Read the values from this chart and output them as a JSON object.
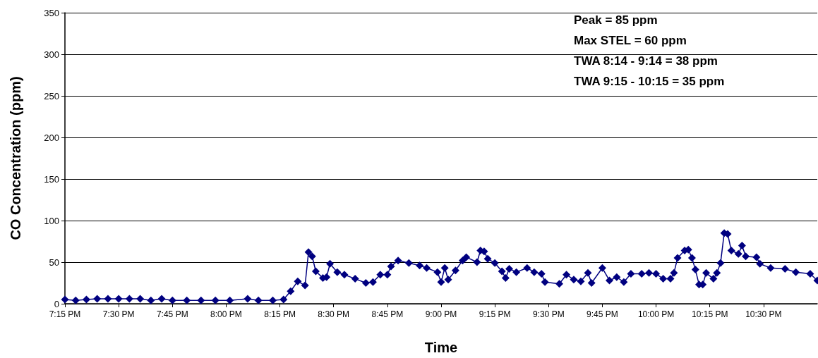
{
  "chart_data": {
    "type": "line",
    "xlabel": "Time",
    "ylabel": "CO Concentration (ppm)",
    "annotations": [
      "Peak = 85 ppm",
      "Max STEL = 60 ppm",
      "TWA 8:14 - 9:14 = 38 ppm",
      "TWA 9:15 - 10:15 = 35 ppm"
    ],
    "series": [
      {
        "color": "#000080",
        "x": [
          19.25,
          19.3,
          19.35,
          19.4,
          19.45,
          19.5,
          19.55,
          19.6,
          19.65,
          19.7,
          19.75,
          19.817,
          19.883,
          19.95,
          20.017,
          20.1,
          20.15,
          20.217,
          20.267,
          20.3,
          20.333,
          20.367,
          20.383,
          20.4,
          20.417,
          20.45,
          20.467,
          20.483,
          20.517,
          20.55,
          20.6,
          20.65,
          20.683,
          20.717,
          20.75,
          20.767,
          20.8,
          20.85,
          20.9,
          20.933,
          20.983,
          21.0,
          21.017,
          21.033,
          21.067,
          21.1,
          21.117,
          21.167,
          21.183,
          21.2,
          21.217,
          21.25,
          21.283,
          21.3,
          21.317,
          21.35,
          21.4,
          21.433,
          21.467,
          21.483,
          21.55,
          21.583,
          21.617,
          21.65,
          21.683,
          21.7,
          21.75,
          21.783,
          21.817,
          21.85,
          21.883,
          21.933,
          21.967,
          22.0,
          22.033,
          22.067,
          22.083,
          22.1,
          22.133,
          22.15,
          22.167,
          22.183,
          22.2,
          22.217,
          22.233,
          22.267,
          22.283,
          22.3,
          22.317,
          22.333,
          22.35,
          22.383,
          22.4,
          22.417,
          22.467,
          22.483,
          22.533,
          22.6,
          22.65,
          22.717,
          22.75
        ],
        "values": [
          5,
          4,
          5,
          6,
          6,
          6,
          6,
          6,
          4,
          6,
          4,
          4,
          4,
          4,
          4,
          6,
          4,
          4,
          5,
          15,
          27,
          22,
          62,
          57,
          39,
          31,
          32,
          48,
          38,
          35,
          30,
          25,
          26,
          35,
          35,
          45,
          52,
          49,
          46,
          43,
          38,
          26,
          43,
          29,
          40,
          52,
          56,
          50,
          64,
          63,
          54,
          49,
          39,
          31,
          42,
          38,
          43,
          38,
          36,
          26,
          24,
          35,
          29,
          27,
          37,
          25,
          43,
          28,
          32,
          26,
          36,
          36,
          37,
          36,
          30,
          30,
          37,
          55,
          64,
          65,
          55,
          41,
          23,
          23,
          37,
          30,
          37,
          49,
          85,
          84,
          64,
          60,
          70,
          57,
          56,
          48,
          43,
          42,
          38,
          36,
          28
        ]
      }
    ],
    "xlim": [
      19.25,
      22.75
    ],
    "xticks": [
      {
        "value": 19.25,
        "label": "7:15 PM"
      },
      {
        "value": 19.5,
        "label": "7:30 PM"
      },
      {
        "value": 19.75,
        "label": "7:45 PM"
      },
      {
        "value": 20,
        "label": "8:00 PM"
      },
      {
        "value": 20.25,
        "label": "8:15 PM"
      },
      {
        "value": 20.5,
        "label": "8:30 PM"
      },
      {
        "value": 20.75,
        "label": "8:45 PM"
      },
      {
        "value": 21,
        "label": "9:00 PM"
      },
      {
        "value": 21.25,
        "label": "9:15 PM"
      },
      {
        "value": 21.5,
        "label": "9:30 PM"
      },
      {
        "value": 21.75,
        "label": "9:45 PM"
      },
      {
        "value": 22,
        "label": "10:00 PM"
      },
      {
        "value": 22.25,
        "label": "10:15 PM"
      },
      {
        "value": 22.5,
        "label": "10:30 PM"
      }
    ],
    "ylim": [
      0,
      350
    ],
    "yticks": [
      0,
      50,
      100,
      150,
      200,
      250,
      300,
      350
    ],
    "grid": "y",
    "marker": "diamond",
    "line_style": "solid"
  }
}
